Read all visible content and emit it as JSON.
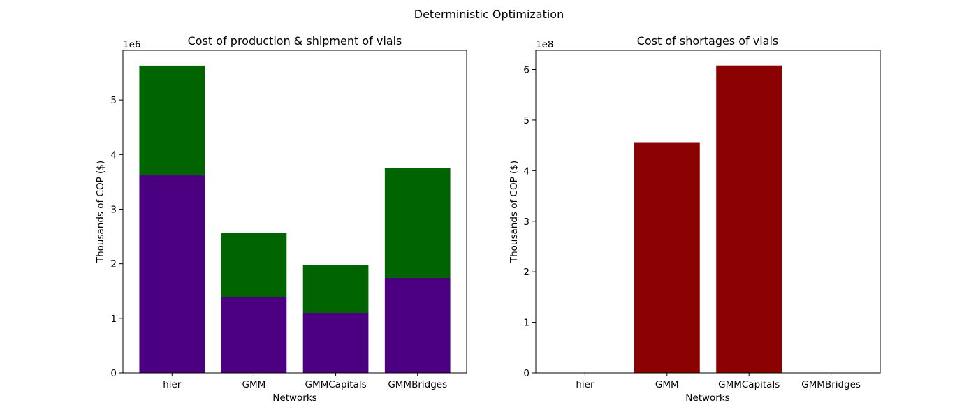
{
  "figure": {
    "suptitle": "Deterministic Optimization"
  },
  "colors": {
    "production": "#4b0082",
    "shipment": "#006400",
    "shortage": "#8b0000"
  },
  "chart_data": [
    {
      "type": "bar",
      "stacked": true,
      "title": "Cost of production & shipment of vials",
      "xlabel": "Networks",
      "ylabel": "Thousands of COP ($)",
      "offset_text": "1e6",
      "scale": 1000000,
      "categories": [
        "hier",
        "GMM",
        "GMMCapitals",
        "GMMBridges"
      ],
      "series": [
        {
          "values": [
            3620000,
            1390000,
            1100000,
            1740000
          ],
          "color": "#4b0082"
        },
        {
          "values": [
            2010000,
            1170000,
            880000,
            2010000
          ],
          "color": "#006400"
        }
      ],
      "ylim": [
        0,
        5910000
      ],
      "yticks": [
        0,
        1,
        2,
        3,
        4,
        5
      ],
      "grid": false
    },
    {
      "type": "bar",
      "title": "Cost of shortages of vials",
      "xlabel": "Networks",
      "ylabel": "Thousands of COP ($)",
      "offset_text": "1e8",
      "scale": 100000000,
      "categories": [
        "hier",
        "GMM",
        "GMMCapitals",
        "GMMBridges"
      ],
      "series": [
        {
          "values": [
            0,
            455000000,
            608000000,
            0
          ],
          "color": "#8b0000"
        }
      ],
      "ylim": [
        0,
        638000000
      ],
      "yticks": [
        0,
        1,
        2,
        3,
        4,
        5,
        6
      ],
      "grid": false
    }
  ]
}
